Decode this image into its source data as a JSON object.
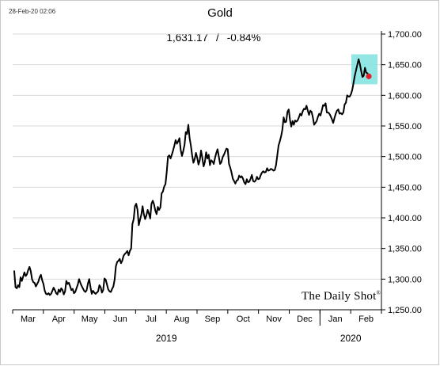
{
  "timestamp": "28-Feb-20 02:06",
  "watermark": "The Daily Shot",
  "watermark_mark": "®",
  "quote": {
    "price": "1,631.17",
    "separator": "/",
    "change": "-0.84%"
  },
  "colors": {
    "line": "#000000",
    "highlight": "#7fe3e1",
    "marker": "#e2202a",
    "grid": "#d9d9d9"
  },
  "chart_data": {
    "type": "line",
    "title": "Gold",
    "xlabel": "",
    "ylabel": "",
    "ylim": [
      1250,
      1700
    ],
    "y_ticks": [
      1250,
      1300,
      1350,
      1400,
      1450,
      1500,
      1550,
      1600,
      1650,
      1700
    ],
    "y_tick_labels": [
      "1,250.00",
      "1,300.00",
      "1,350.00",
      "1,400.00",
      "1,450.00",
      "1,500.00",
      "1,550.00",
      "1,600.00",
      "1,650.00",
      "1,700.00"
    ],
    "grid": true,
    "months": [
      "Mar",
      "Apr",
      "May",
      "Jun",
      "Jul",
      "Aug",
      "Sep",
      "Oct",
      "Nov",
      "Dec",
      "Jan",
      "Feb"
    ],
    "years": [
      "2019",
      "2020"
    ],
    "highlight_last_point": true,
    "series": [
      {
        "values": [
          1313,
          1287,
          1285,
          1290,
          1287,
          1303,
          1297,
          1304,
          1311,
          1305,
          1308,
          1315,
          1320,
          1313,
          1300,
          1295,
          1294,
          1288,
          1292,
          1296,
          1303,
          1307,
          1298,
          1292,
          1281,
          1276,
          1275,
          1277,
          1274,
          1276,
          1281,
          1286,
          1282,
          1277,
          1275,
          1283,
          1279,
          1285,
          1282,
          1275,
          1280,
          1297,
          1292,
          1294,
          1288,
          1282,
          1284,
          1277,
          1279,
          1285,
          1291,
          1300,
          1294,
          1289,
          1285,
          1281,
          1279,
          1282,
          1293,
          1300,
          1287,
          1276,
          1281,
          1278,
          1276,
          1278,
          1280,
          1290,
          1287,
          1278,
          1282,
          1301,
          1299,
          1291,
          1283,
          1280,
          1279,
          1284,
          1288,
          1299,
          1321,
          1328,
          1330,
          1333,
          1326,
          1330,
          1338,
          1341,
          1343,
          1346,
          1339,
          1346,
          1350,
          1390,
          1398,
          1419,
          1423,
          1413,
          1388,
          1397,
          1405,
          1419,
          1406,
          1398,
          1404,
          1413,
          1407,
          1399,
          1423,
          1428,
          1422,
          1412,
          1406,
          1418,
          1413,
          1417,
          1440,
          1443,
          1451,
          1455,
          1475,
          1500,
          1502,
          1497,
          1503,
          1510,
          1518,
          1527,
          1521,
          1525,
          1530,
          1511,
          1501,
          1509,
          1519,
          1540,
          1537,
          1552,
          1530,
          1518,
          1502,
          1490,
          1496,
          1506,
          1498,
          1487,
          1494,
          1510,
          1498,
          1484,
          1491,
          1507,
          1497,
          1503,
          1486,
          1494,
          1492,
          1488,
          1498,
          1506,
          1512,
          1500,
          1488,
          1491,
          1499,
          1503,
          1508,
          1513,
          1512,
          1488,
          1482,
          1474,
          1464,
          1460,
          1456,
          1461,
          1462,
          1469,
          1466,
          1468,
          1464,
          1458,
          1455,
          1463,
          1458,
          1459,
          1464,
          1470,
          1460,
          1459,
          1461,
          1467,
          1463,
          1464,
          1470,
          1474,
          1476,
          1474,
          1475,
          1481,
          1477,
          1478,
          1480,
          1479,
          1477,
          1478,
          1486,
          1502,
          1518,
          1525,
          1533,
          1544,
          1564,
          1556,
          1557,
          1573,
          1577,
          1560,
          1549,
          1558,
          1552,
          1559,
          1557,
          1559,
          1564,
          1570,
          1567,
          1574,
          1578,
          1577,
          1583,
          1575,
          1568,
          1575,
          1573,
          1564,
          1552,
          1555,
          1558,
          1565,
          1570,
          1567,
          1575,
          1584,
          1583,
          1587,
          1572,
          1572,
          1570,
          1566,
          1561,
          1555,
          1563,
          1570,
          1575,
          1577,
          1570,
          1571,
          1569,
          1572,
          1585,
          1588,
          1600,
          1598,
          1598,
          1602,
          1609,
          1620,
          1632,
          1641,
          1650,
          1659,
          1651,
          1640,
          1630,
          1632,
          1645,
          1637,
          1636,
          1631
        ]
      }
    ]
  }
}
